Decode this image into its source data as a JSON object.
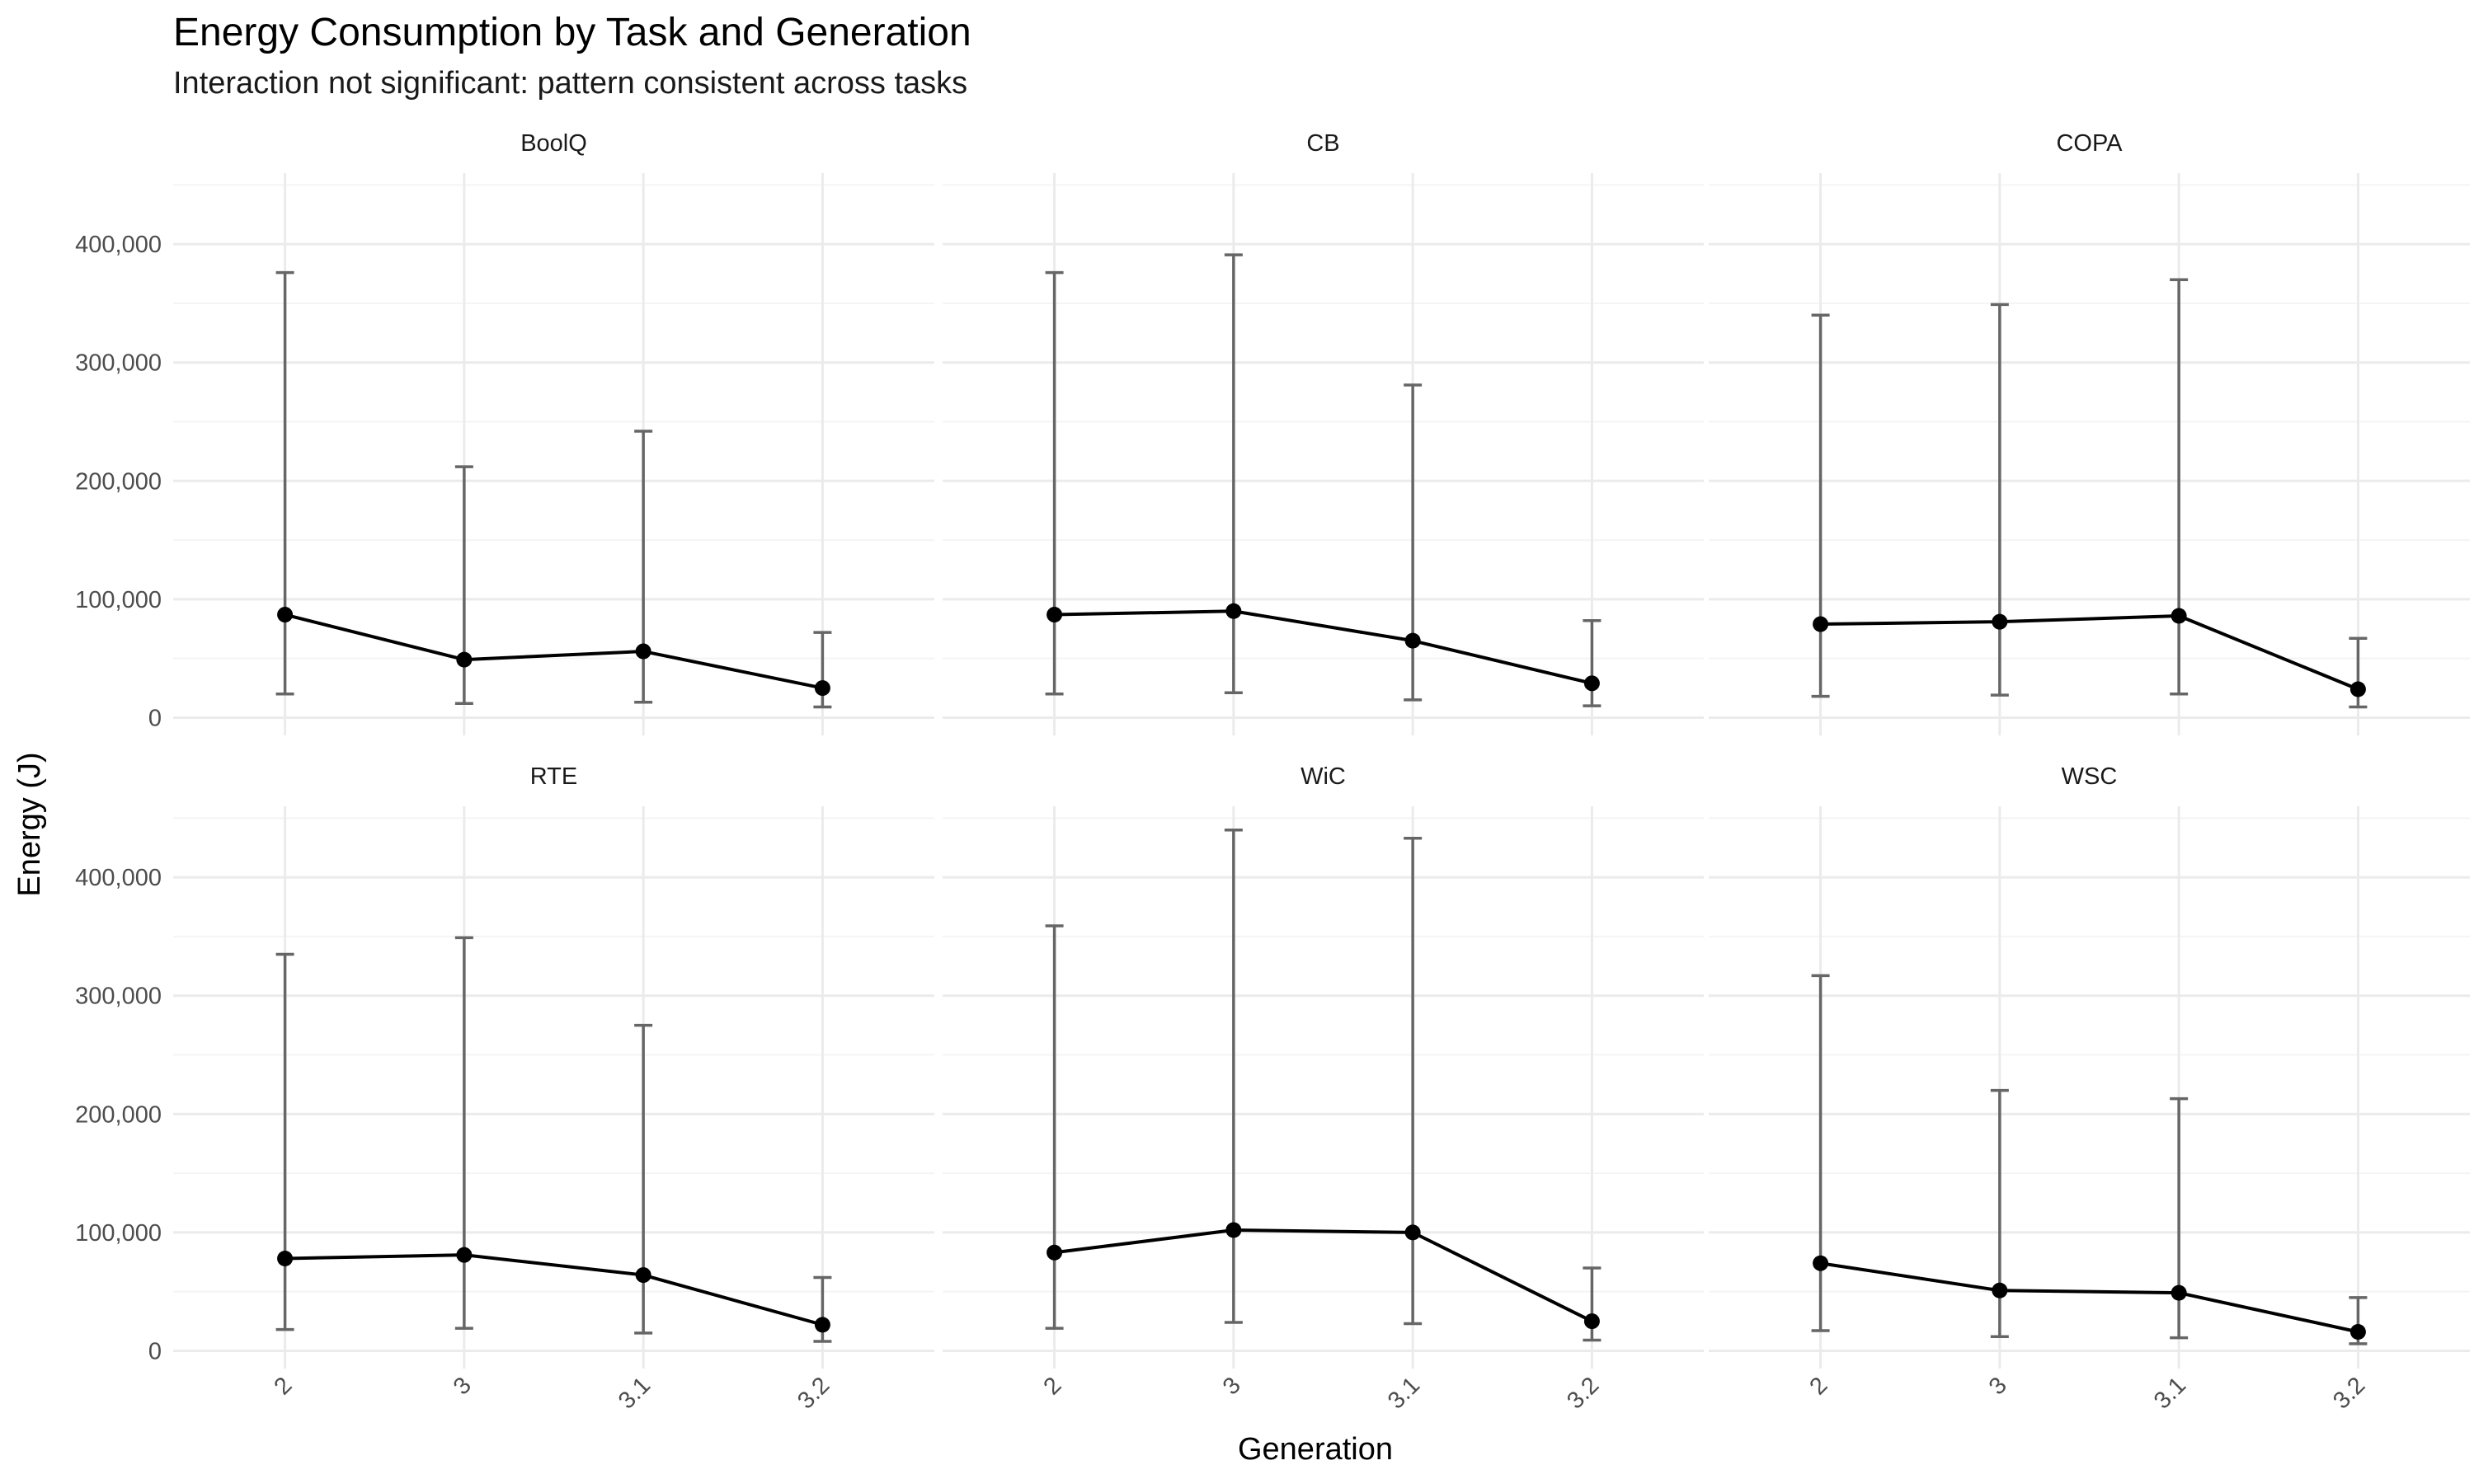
{
  "chart_data": {
    "type": "line",
    "title": "Energy Consumption by Task and Generation",
    "subtitle": "Interaction not significant: pattern consistent across tasks",
    "xlabel": "Generation",
    "ylabel": "Energy (J)",
    "categories": [
      "2",
      "3",
      "3.1",
      "3.2"
    ],
    "ylim": [
      -15000,
      460000
    ],
    "yticks": [
      0,
      100000,
      200000,
      300000,
      400000
    ],
    "ytick_labels": [
      "0",
      "100,000",
      "200,000",
      "300,000",
      "400,000"
    ],
    "grid": true,
    "legend": "none",
    "colors": {
      "line": "#000000",
      "point": "#000000",
      "errorbar": "#666666",
      "grid_major": "#ebebeb",
      "grid_minor": "#f4f4f4"
    },
    "panels": [
      {
        "name": "BoolQ",
        "values": [
          87000,
          49000,
          56000,
          25000
        ],
        "lower": [
          20000,
          12000,
          13000,
          9000
        ],
        "upper": [
          376000,
          212000,
          242000,
          72000
        ]
      },
      {
        "name": "CB",
        "values": [
          87000,
          90000,
          65000,
          29000
        ],
        "lower": [
          20000,
          21000,
          15000,
          10000
        ],
        "upper": [
          376000,
          391000,
          281000,
          82000
        ]
      },
      {
        "name": "COPA",
        "values": [
          79000,
          81000,
          86000,
          24000
        ],
        "lower": [
          18000,
          19000,
          20000,
          9000
        ],
        "upper": [
          340000,
          349000,
          370000,
          67000
        ]
      },
      {
        "name": "RTE",
        "values": [
          78000,
          81000,
          64000,
          22000
        ],
        "lower": [
          18000,
          19000,
          15000,
          8000
        ],
        "upper": [
          335000,
          349000,
          275000,
          62000
        ]
      },
      {
        "name": "WiC",
        "values": [
          83000,
          102000,
          100000,
          25000
        ],
        "lower": [
          19000,
          24000,
          23000,
          9000
        ],
        "upper": [
          359000,
          440000,
          433000,
          70000
        ]
      },
      {
        "name": "WSC",
        "values": [
          74000,
          51000,
          49000,
          16000
        ],
        "lower": [
          17000,
          12000,
          11000,
          6000
        ],
        "upper": [
          317000,
          220000,
          213000,
          45000
        ]
      }
    ]
  }
}
